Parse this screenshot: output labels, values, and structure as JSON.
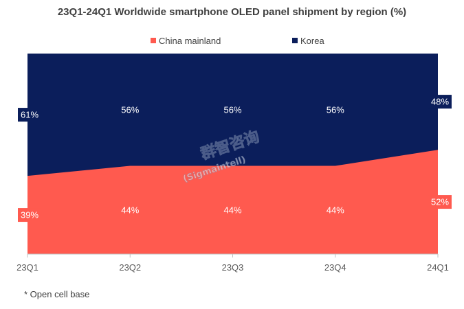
{
  "chart_data": {
    "type": "area",
    "stacked": true,
    "percent_stacked": true,
    "title": "23Q1-24Q1 Worldwide smartphone OLED panel shipment by region (%)",
    "categories": [
      "23Q1",
      "23Q2",
      "23Q3",
      "23Q4",
      "24Q1"
    ],
    "series": [
      {
        "name": "China mainland",
        "values": [
          39,
          44,
          44,
          44,
          52
        ],
        "labels": [
          "39%",
          "44%",
          "44%",
          "44%",
          "52%"
        ],
        "color": "#FF5A4F"
      },
      {
        "name": "Korea",
        "values": [
          61,
          56,
          56,
          56,
          48
        ],
        "labels": [
          "61%",
          "56%",
          "56%",
          "56%",
          "48%"
        ],
        "color": "#0B1E5B"
      }
    ],
    "ylim": [
      0,
      100
    ],
    "legend_position": "top",
    "grid": false,
    "footnote": "* Open cell base",
    "watermark": "群智咨询 (Sigmaintell)"
  }
}
